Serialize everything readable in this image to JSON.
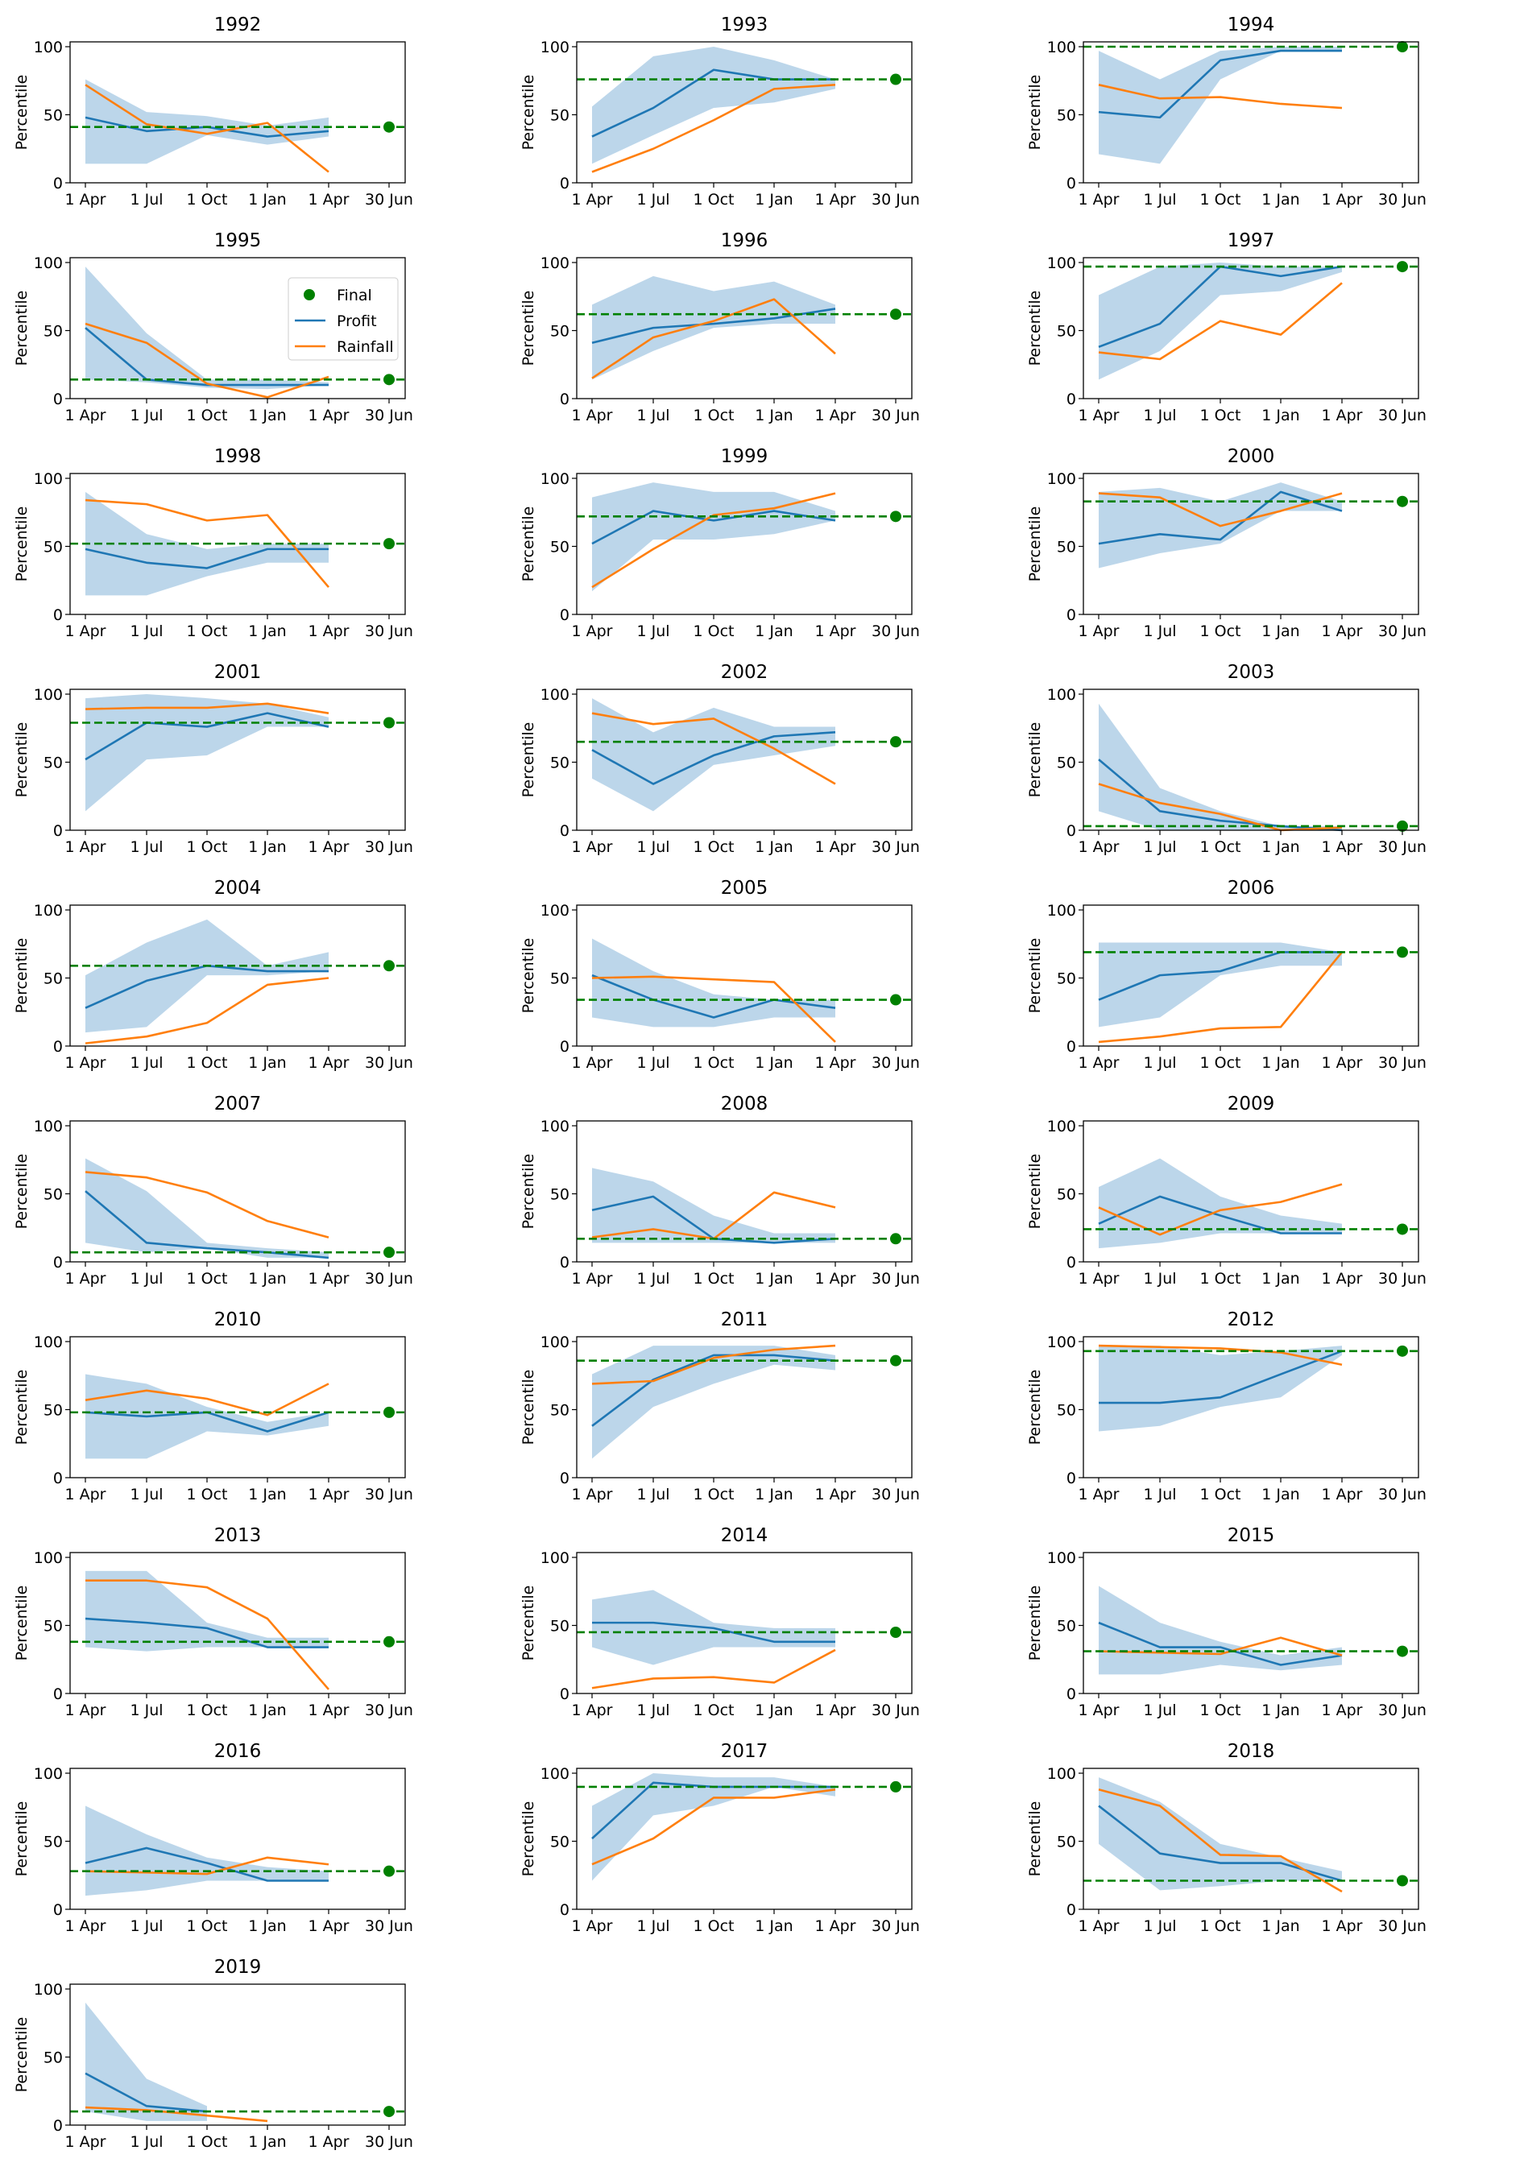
{
  "figure": {
    "ylabel": "Percentile",
    "legend": {
      "placement": "upper-right of 1995 panel",
      "entries": [
        {
          "label": "Final",
          "kind": "marker",
          "color": "#008000"
        },
        {
          "label": "Profit",
          "kind": "line",
          "color": "#1f77b4"
        },
        {
          "label": "Rainfall",
          "kind": "line",
          "color": "#ff7f0e"
        }
      ]
    }
  },
  "chart_data": {
    "type": "line",
    "layout": "small-multiples grid, 3 columns",
    "xlabel": "",
    "ylabel": "Percentile",
    "ylim": [
      0,
      100
    ],
    "yticks": [
      0,
      50,
      100
    ],
    "xtick_labels": [
      "1 Apr",
      "1 Jul",
      "1 Oct",
      "1 Jan",
      "1 Apr",
      "30 Jun"
    ],
    "series_names": {
      "profit": "Profit",
      "band": "Profit range",
      "rainfall": "Rainfall",
      "final": "Final"
    },
    "colors": {
      "profit": "#1f77b4",
      "band": "#a6c8e3",
      "rainfall": "#ff7f0e",
      "final": "#008000"
    },
    "panels": [
      {
        "title": "1992",
        "profit": [
          48,
          38,
          41,
          34,
          38
        ],
        "band_low": [
          14,
          14,
          35,
          28,
          34
        ],
        "band_high": [
          76,
          52,
          49,
          42,
          48
        ],
        "rainfall": [
          72,
          43,
          36,
          44,
          8
        ],
        "final": 41
      },
      {
        "title": "1993",
        "profit": [
          34,
          55,
          83,
          76,
          76
        ],
        "band_low": [
          14,
          35,
          55,
          59,
          69
        ],
        "band_high": [
          56,
          93,
          100,
          90,
          76
        ],
        "rainfall": [
          8,
          25,
          46,
          69,
          72
        ],
        "final": 76
      },
      {
        "title": "1994",
        "profit": [
          52,
          48,
          90,
          97,
          97
        ],
        "band_low": [
          21,
          14,
          76,
          97,
          97
        ],
        "band_high": [
          97,
          76,
          97,
          100,
          100
        ],
        "rainfall": [
          72,
          62,
          63,
          58,
          55
        ],
        "final": 100
      },
      {
        "title": "1995",
        "profit": [
          52,
          14,
          10,
          10,
          10
        ],
        "band_low": [
          14,
          12,
          8,
          7,
          10
        ],
        "band_high": [
          97,
          48,
          14,
          14,
          12
        ],
        "rainfall": [
          55,
          41,
          11,
          1,
          16
        ],
        "final": 14
      },
      {
        "title": "1996",
        "profit": [
          41,
          52,
          55,
          59,
          66
        ],
        "band_low": [
          14,
          35,
          52,
          55,
          55
        ],
        "band_high": [
          69,
          90,
          79,
          86,
          69
        ],
        "rainfall": [
          15,
          45,
          57,
          73,
          33
        ],
        "final": 62
      },
      {
        "title": "1997",
        "profit": [
          38,
          55,
          97,
          90,
          97
        ],
        "band_low": [
          14,
          35,
          76,
          79,
          93
        ],
        "band_high": [
          76,
          97,
          100,
          97,
          97
        ],
        "rainfall": [
          34,
          29,
          57,
          47,
          85
        ],
        "final": 97
      },
      {
        "title": "1998",
        "profit": [
          48,
          38,
          34,
          48,
          48
        ],
        "band_low": [
          14,
          14,
          28,
          38,
          38
        ],
        "band_high": [
          90,
          59,
          48,
          52,
          52
        ],
        "rainfall": [
          84,
          81,
          69,
          73,
          20
        ],
        "final": 52
      },
      {
        "title": "1999",
        "profit": [
          52,
          76,
          69,
          76,
          69
        ],
        "band_low": [
          17,
          55,
          55,
          59,
          69
        ],
        "band_high": [
          86,
          97,
          90,
          90,
          76
        ],
        "rainfall": [
          20,
          48,
          73,
          78,
          89
        ],
        "final": 72
      },
      {
        "title": "2000",
        "profit": [
          52,
          59,
          55,
          90,
          76
        ],
        "band_low": [
          34,
          45,
          52,
          76,
          76
        ],
        "band_high": [
          90,
          93,
          83,
          97,
          83
        ],
        "rainfall": [
          89,
          86,
          65,
          76,
          89
        ],
        "final": 83
      },
      {
        "title": "2001",
        "profit": [
          52,
          79,
          76,
          86,
          76
        ],
        "band_low": [
          14,
          52,
          55,
          76,
          76
        ],
        "band_high": [
          97,
          100,
          97,
          93,
          83
        ],
        "rainfall": [
          89,
          90,
          90,
          93,
          86
        ],
        "final": 79
      },
      {
        "title": "2002",
        "profit": [
          59,
          34,
          55,
          69,
          72
        ],
        "band_low": [
          38,
          14,
          48,
          55,
          62
        ],
        "band_high": [
          97,
          72,
          90,
          76,
          76
        ],
        "rainfall": [
          86,
          78,
          82,
          60,
          34
        ],
        "final": 65
      },
      {
        "title": "2003",
        "profit": [
          52,
          14,
          7,
          3,
          0
        ],
        "band_low": [
          14,
          0,
          0,
          0,
          0
        ],
        "band_high": [
          93,
          31,
          14,
          3,
          3
        ],
        "rainfall": [
          34,
          20,
          12,
          0,
          2
        ],
        "final": 3
      },
      {
        "title": "2004",
        "profit": [
          28,
          48,
          59,
          55,
          55
        ],
        "band_low": [
          10,
          14,
          52,
          52,
          55
        ],
        "band_high": [
          52,
          76,
          93,
          59,
          69
        ],
        "rainfall": [
          2,
          7,
          17,
          45,
          50
        ],
        "final": 59
      },
      {
        "title": "2005",
        "profit": [
          52,
          34,
          21,
          34,
          28
        ],
        "band_low": [
          21,
          14,
          14,
          21,
          21
        ],
        "band_high": [
          79,
          55,
          38,
          34,
          34
        ],
        "rainfall": [
          50,
          51,
          49,
          47,
          3
        ],
        "final": 34
      },
      {
        "title": "2006",
        "profit": [
          34,
          52,
          55,
          69,
          69
        ],
        "band_low": [
          14,
          21,
          52,
          59,
          59
        ],
        "band_high": [
          76,
          76,
          76,
          76,
          69
        ],
        "rainfall": [
          3,
          7,
          13,
          14,
          69
        ],
        "final": 69
      },
      {
        "title": "2007",
        "profit": [
          52,
          14,
          10,
          7,
          3
        ],
        "band_low": [
          14,
          7,
          10,
          3,
          3
        ],
        "band_high": [
          76,
          52,
          14,
          10,
          7
        ],
        "rainfall": [
          66,
          62,
          51,
          30,
          18
        ],
        "final": 7
      },
      {
        "title": "2008",
        "profit": [
          38,
          48,
          17,
          14,
          17
        ],
        "band_low": [
          14,
          14,
          14,
          14,
          14
        ],
        "band_high": [
          69,
          59,
          34,
          21,
          21
        ],
        "rainfall": [
          18,
          24,
          17,
          51,
          40
        ],
        "final": 17
      },
      {
        "title": "2009",
        "profit": [
          28,
          48,
          34,
          21,
          21
        ],
        "band_low": [
          10,
          14,
          21,
          21,
          21
        ],
        "band_high": [
          55,
          76,
          48,
          34,
          28
        ],
        "rainfall": [
          40,
          20,
          38,
          44,
          57
        ],
        "final": 24
      },
      {
        "title": "2010",
        "profit": [
          48,
          45,
          48,
          34,
          48
        ],
        "band_low": [
          14,
          14,
          34,
          31,
          38
        ],
        "band_high": [
          76,
          69,
          52,
          41,
          48
        ],
        "rainfall": [
          57,
          64,
          58,
          46,
          69
        ],
        "final": 48
      },
      {
        "title": "2011",
        "profit": [
          38,
          72,
          90,
          90,
          86
        ],
        "band_low": [
          14,
          52,
          69,
          83,
          79
        ],
        "band_high": [
          76,
          97,
          97,
          97,
          90
        ],
        "rainfall": [
          69,
          71,
          88,
          94,
          97
        ],
        "final": 86
      },
      {
        "title": "2012",
        "profit": [
          55,
          55,
          59,
          76,
          93
        ],
        "band_low": [
          34,
          38,
          52,
          59,
          90
        ],
        "band_high": [
          97,
          97,
          90,
          93,
          97
        ],
        "rainfall": [
          97,
          96,
          95,
          92,
          83
        ],
        "final": 93
      },
      {
        "title": "2013",
        "profit": [
          55,
          52,
          48,
          34,
          34
        ],
        "band_low": [
          34,
          31,
          34,
          34,
          34
        ],
        "band_high": [
          90,
          90,
          52,
          41,
          41
        ],
        "rainfall": [
          83,
          83,
          78,
          55,
          3
        ],
        "final": 38
      },
      {
        "title": "2014",
        "profit": [
          52,
          52,
          48,
          38,
          38
        ],
        "band_low": [
          34,
          21,
          34,
          34,
          34
        ],
        "band_high": [
          69,
          76,
          52,
          48,
          48
        ],
        "rainfall": [
          4,
          11,
          12,
          8,
          32
        ],
        "final": 45
      },
      {
        "title": "2015",
        "profit": [
          52,
          34,
          34,
          21,
          28
        ],
        "band_low": [
          14,
          14,
          21,
          17,
          21
        ],
        "band_high": [
          79,
          52,
          38,
          28,
          34
        ],
        "rainfall": [
          31,
          30,
          29,
          41,
          28
        ],
        "final": 31
      },
      {
        "title": "2016",
        "profit": [
          34,
          45,
          34,
          21,
          21
        ],
        "band_low": [
          10,
          14,
          21,
          21,
          21
        ],
        "band_high": [
          76,
          55,
          38,
          31,
          28
        ],
        "rainfall": [
          28,
          27,
          26,
          38,
          33
        ],
        "final": 28
      },
      {
        "title": "2017",
        "profit": [
          52,
          93,
          90,
          90,
          90
        ],
        "band_low": [
          21,
          69,
          76,
          90,
          83
        ],
        "band_high": [
          76,
          100,
          97,
          97,
          90
        ],
        "rainfall": [
          33,
          52,
          82,
          82,
          88
        ],
        "final": 90
      },
      {
        "title": "2018",
        "profit": [
          76,
          41,
          34,
          34,
          21
        ],
        "band_low": [
          48,
          14,
          17,
          21,
          21
        ],
        "band_high": [
          97,
          79,
          48,
          38,
          28
        ],
        "rainfall": [
          88,
          76,
          40,
          39,
          13
        ],
        "final": 21
      },
      {
        "title": "2019",
        "profit": [
          38,
          14,
          10,
          null,
          null
        ],
        "band_low": [
          10,
          3,
          3,
          null,
          null
        ],
        "band_high": [
          90,
          34,
          14,
          null,
          null
        ],
        "rainfall": [
          13,
          11,
          7,
          3,
          null
        ],
        "final": 10
      }
    ]
  }
}
